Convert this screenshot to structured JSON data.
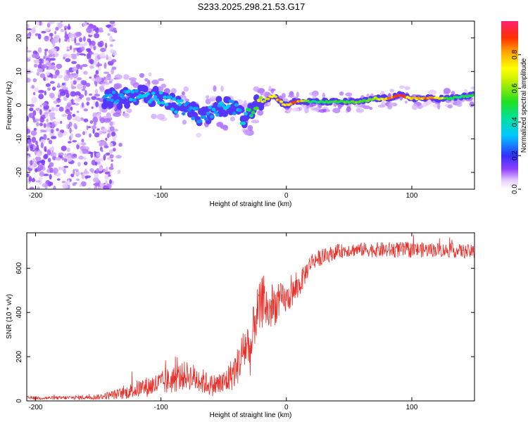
{
  "chart_data": [
    {
      "type": "heatmap",
      "title": "S233.2025.298.21.53.G17",
      "xlabel": "Height of straight line (km)",
      "ylabel": "Frequency (Hz)",
      "xlim": [
        -207,
        150
      ],
      "ylim": [
        -25,
        25
      ],
      "x_ticks": [
        -200,
        -100,
        0,
        100
      ],
      "y_ticks": [
        -20,
        -10,
        0,
        10,
        20
      ],
      "colorbar": {
        "label": "Normalized spectral amplitude",
        "range": [
          0,
          1
        ],
        "ticks": [
          "0.0",
          "0.2",
          "0.4",
          "0.6",
          "0.8"
        ],
        "tick_values": [
          0,
          0.2,
          0.4,
          0.6,
          0.8
        ]
      },
      "ridge": {
        "x": [
          -145,
          -130,
          -115,
          -100,
          -90,
          -80,
          -70,
          -60,
          -50,
          -40,
          -35,
          -30,
          -25,
          -20,
          -15,
          -10,
          -5,
          0,
          5,
          10,
          20,
          30,
          40,
          50,
          60,
          70,
          80,
          90,
          100,
          110,
          120,
          130,
          150
        ],
        "y": [
          2,
          2,
          3,
          2,
          0,
          -1,
          -3,
          -2,
          0,
          -1,
          -4,
          -2,
          0,
          1,
          2,
          3,
          1,
          0,
          1,
          1,
          1,
          1,
          1,
          1,
          1,
          2,
          2,
          3,
          2,
          2,
          2,
          2,
          3
        ],
        "amplitude": [
          0.3,
          0.3,
          0.35,
          0.35,
          0.35,
          0.3,
          0.3,
          0.3,
          0.35,
          0.3,
          0.35,
          0.45,
          0.6,
          0.7,
          0.75,
          0.8,
          0.85,
          0.75,
          0.9,
          0.85,
          0.5,
          0.5,
          0.55,
          0.55,
          0.6,
          0.6,
          0.8,
          0.95,
          0.75,
          0.85,
          0.85,
          0.5,
          0.5
        ]
      },
      "noise_region_x": [
        -207,
        -137
      ]
    },
    {
      "type": "line",
      "title": "",
      "xlabel": "Height of straight line (km)",
      "ylabel": "SNR (10 * v/v)",
      "xlim": [
        -207,
        150
      ],
      "ylim": [
        0,
        760
      ],
      "x_ticks": [
        -200,
        -100,
        0,
        100
      ],
      "y_ticks": [
        0,
        200,
        400,
        600
      ],
      "color": "#e8302a",
      "envelope_x": [
        -207,
        -180,
        -150,
        -130,
        -120,
        -100,
        -90,
        -80,
        -70,
        -60,
        -50,
        -40,
        -32,
        -28,
        -25,
        -20,
        -18,
        -15,
        -10,
        -5,
        0,
        5,
        10,
        20,
        30,
        40,
        50,
        60,
        80,
        100,
        120,
        150
      ],
      "envelope_y": [
        15,
        15,
        20,
        40,
        60,
        90,
        110,
        130,
        110,
        80,
        90,
        160,
        280,
        250,
        400,
        450,
        500,
        420,
        450,
        470,
        470,
        500,
        530,
        640,
        660,
        680,
        690,
        690,
        690,
        690,
        690,
        680
      ],
      "spread_y": [
        10,
        10,
        15,
        35,
        50,
        70,
        80,
        80,
        80,
        60,
        80,
        100,
        150,
        150,
        150,
        150,
        150,
        130,
        120,
        100,
        80,
        80,
        70,
        50,
        45,
        40,
        40,
        40,
        45,
        45,
        40,
        40
      ]
    }
  ],
  "colors": {
    "snr_line": "#e8302a",
    "plot_background": "#ffffff",
    "axis": "#000000"
  }
}
